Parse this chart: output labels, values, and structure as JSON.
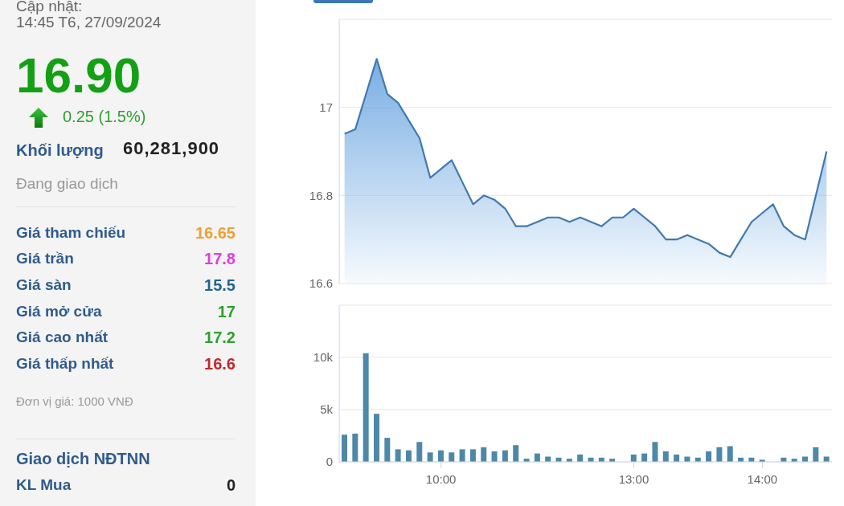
{
  "chart_data": [
    {
      "type": "other",
      "annotations": [
        "Cập nhật:",
        "14:45 T6, 27/09/2024",
        "16.90",
        "0.25 (1.5%)",
        "Khối lượng",
        "60,281,900",
        "Đang giao dịch",
        "Giá tham chiếu",
        "16.65",
        "Giá trần",
        "17.8",
        "Giá sàn",
        "15.5",
        "Giá mở cửa",
        "17",
        "Giá cao nhất",
        "17.2",
        "Giá thấp nhất",
        "16.6",
        "Đơn vị giá: 1000 VNĐ",
        "Giao dịch NĐTNN",
        "KL Mua",
        "0"
      ]
    },
    {
      "type": "area",
      "categories": [
        null,
        null,
        null,
        null,
        null,
        null,
        null,
        null,
        null,
        null,
        null,
        null,
        null,
        null,
        null,
        null,
        null,
        null,
        null,
        null,
        null,
        null,
        null,
        null,
        null,
        null,
        null,
        null,
        null,
        null,
        null,
        null,
        null,
        null,
        null,
        null,
        null,
        null,
        null,
        null,
        null,
        null,
        null,
        null,
        null,
        null
      ],
      "values": [
        16.94,
        16.95,
        17.03,
        17.11,
        17.03,
        17.01,
        16.97,
        16.93,
        16.84,
        16.86,
        16.88,
        16.83,
        16.78,
        16.8,
        16.79,
        16.77,
        16.73,
        16.73,
        16.74,
        16.75,
        16.75,
        16.74,
        16.75,
        16.74,
        16.73,
        16.75,
        16.75,
        16.77,
        16.75,
        16.73,
        16.7,
        16.7,
        16.71,
        16.7,
        16.69,
        16.67,
        16.66,
        16.7,
        16.74,
        16.76,
        16.78,
        16.73,
        16.71,
        16.7,
        16.8,
        16.9
      ],
      "color": "#4279ae",
      "ylim": [
        16.6,
        17.2
      ],
      "yticks": [
        16.6,
        16.8,
        17,
        {
          "value": 17.2,
          "label": null
        }
      ],
      "grid": "y",
      "tick_labels": "y"
    },
    {
      "type": "bar",
      "categories": [
        null,
        null,
        null,
        null,
        null,
        null,
        null,
        null,
        null,
        "10:00",
        null,
        null,
        null,
        null,
        null,
        null,
        null,
        null,
        null,
        null,
        null,
        null,
        null,
        null,
        null,
        null,
        null,
        "13:00",
        null,
        null,
        null,
        null,
        null,
        null,
        null,
        null,
        null,
        null,
        null,
        "14:00",
        null,
        null,
        null,
        null,
        null,
        null
      ],
      "values": [
        2600,
        2700,
        10400,
        4600,
        2300,
        1200,
        1100,
        1900,
        900,
        1100,
        900,
        1200,
        1200,
        1400,
        1000,
        1100,
        1600,
        300,
        800,
        500,
        400,
        300,
        700,
        400,
        400,
        300,
        null,
        700,
        800,
        1900,
        1000,
        700,
        500,
        400,
        1000,
        1400,
        1500,
        400,
        400,
        200,
        null,
        400,
        300,
        500,
        1400,
        500
      ],
      "color": "#4e88a8",
      "ylim": [
        0,
        15000
      ],
      "yticks": [
        0,
        {
          "value": 5000,
          "label": "5k"
        },
        {
          "value": 10000,
          "label": "10k"
        },
        {
          "value": 15000,
          "label": null
        }
      ],
      "grid": "y"
    }
  ]
}
